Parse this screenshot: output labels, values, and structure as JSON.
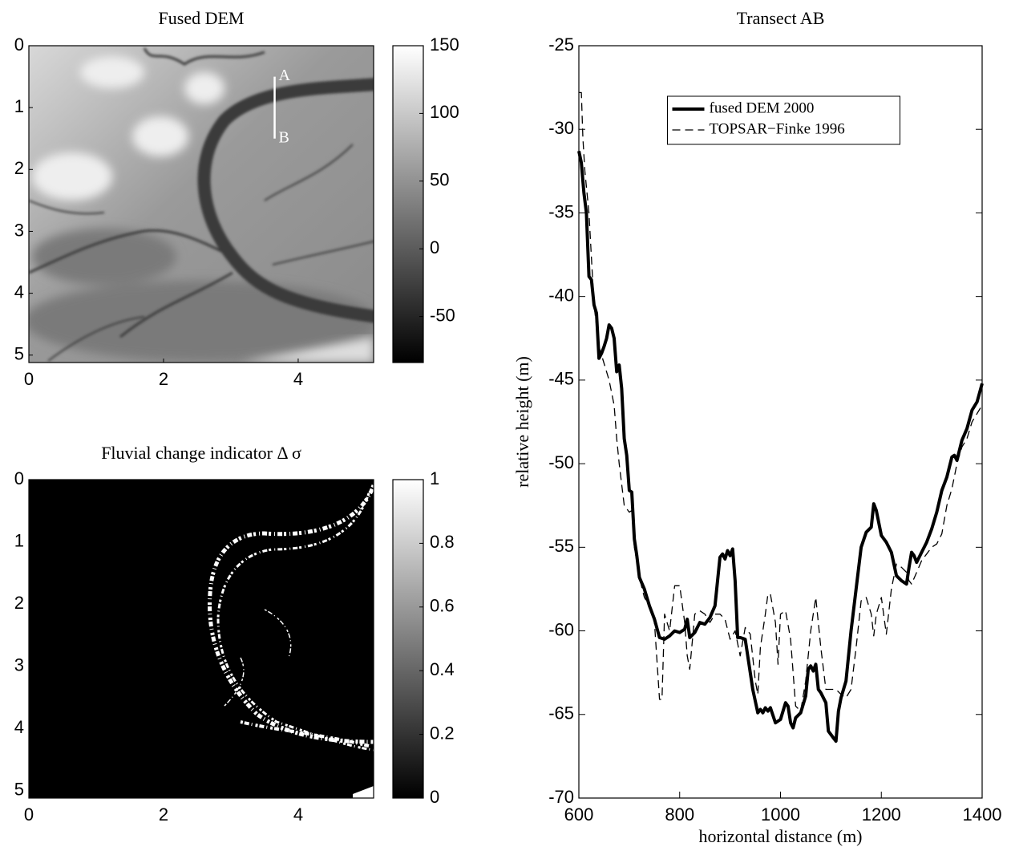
{
  "chart_data": [
    {
      "type": "image",
      "title": "Fused DEM",
      "xlim": [
        0,
        5.12
      ],
      "ylim": [
        0,
        5.12
      ],
      "y_reversed": true,
      "xticks": [
        0,
        2,
        4
      ],
      "yticks": [
        0,
        1,
        2,
        3,
        4,
        5
      ],
      "clim": [
        -84,
        150
      ],
      "cticks": [
        150,
        100,
        50,
        0,
        -50
      ],
      "transect": {
        "x": 3.65,
        "y": [
          0.5,
          1.5
        ],
        "labels": [
          "A",
          "B"
        ],
        "color": "#ffffff"
      }
    },
    {
      "type": "image",
      "title": "Fluvial change indicator Δ σ",
      "xlim": [
        0,
        5.12
      ],
      "ylim": [
        0,
        5.12
      ],
      "y_reversed": true,
      "xticks": [
        0,
        2,
        4
      ],
      "yticks": [
        0,
        1,
        2,
        3,
        4,
        5
      ],
      "clim": [
        0,
        1
      ],
      "cticks": [
        1,
        0.8,
        0.6,
        0.4,
        0.2,
        0
      ]
    },
    {
      "type": "line",
      "title": "Transect AB",
      "x_label": "horizontal distance (m)",
      "y_label": "relative height (m)",
      "xlim": [
        600,
        1400
      ],
      "ylim": [
        -70,
        -25
      ],
      "xticks": [
        600,
        800,
        1000,
        1200,
        1400
      ],
      "yticks": [
        -25,
        -30,
        -35,
        -40,
        -45,
        -50,
        -55,
        -60,
        -65,
        -70
      ],
      "legend": "upper center",
      "series": [
        {
          "name": "fused DEM 2000",
          "color": "#000000",
          "line_style": "solid",
          "line_width": 4,
          "x": [
            600,
            605,
            610,
            615,
            620,
            625,
            630,
            635,
            640,
            645,
            650,
            655,
            660,
            665,
            670,
            675,
            680,
            685,
            690,
            695,
            700,
            705,
            710,
            715,
            720,
            730,
            740,
            750,
            760,
            770,
            780,
            790,
            800,
            810,
            815,
            820,
            830,
            840,
            850,
            860,
            870,
            880,
            885,
            890,
            895,
            900,
            905,
            910,
            915,
            920,
            930,
            940,
            945,
            955,
            960,
            965,
            970,
            975,
            980,
            990,
            1000,
            1010,
            1015,
            1020,
            1025,
            1030,
            1040,
            1050,
            1055,
            1060,
            1065,
            1070,
            1075,
            1080,
            1090,
            1095,
            1105,
            1110,
            1115,
            1120,
            1130,
            1140,
            1150,
            1160,
            1170,
            1180,
            1185,
            1190,
            1200,
            1210,
            1220,
            1230,
            1240,
            1250,
            1255,
            1260,
            1265,
            1270,
            1280,
            1290,
            1300,
            1310,
            1320,
            1330,
            1340,
            1345,
            1350,
            1360,
            1370,
            1380,
            1390,
            1400
          ],
          "values": [
            -31.3,
            -32,
            -33.8,
            -35,
            -38.8,
            -39,
            -40.5,
            -41,
            -43.7,
            -43.4,
            -43,
            -42.5,
            -41.7,
            -41.9,
            -42.5,
            -44.5,
            -44.1,
            -45.5,
            -48.5,
            -49.5,
            -51.6,
            -51.7,
            -54.5,
            -55.5,
            -56.8,
            -57.5,
            -58.5,
            -59.3,
            -60.4,
            -60.5,
            -60.3,
            -60,
            -60.1,
            -59.9,
            -59.3,
            -60.4,
            -60.1,
            -59.5,
            -59.6,
            -59.2,
            -58.5,
            -55.6,
            -55.4,
            -55.7,
            -55.2,
            -55.5,
            -55.1,
            -57,
            -60.4,
            -60.4,
            -60.5,
            -62.5,
            -63.5,
            -64.9,
            -64.7,
            -64.9,
            -64.6,
            -64.8,
            -64.6,
            -65.5,
            -65.3,
            -64.3,
            -64.5,
            -65.5,
            -65.8,
            -65.2,
            -64.9,
            -63.9,
            -62.3,
            -62.1,
            -62.4,
            -62,
            -63.5,
            -63.7,
            -64.3,
            -66,
            -66.4,
            -66.6,
            -64.8,
            -64,
            -63,
            -60,
            -57.5,
            -55,
            -54.1,
            -53.8,
            -52.4,
            -52.8,
            -54.3,
            -54.7,
            -55.3,
            -56.7,
            -57,
            -57.2,
            -56.2,
            -55.3,
            -55.5,
            -55.9,
            -55.3,
            -54.7,
            -53.9,
            -52.9,
            -51.6,
            -50.8,
            -49.6,
            -49.5,
            -49.8,
            -48.6,
            -47.9,
            -46.8,
            -46.3,
            -45.2
          ]
        },
        {
          "name": "TOPSAR−Finke 1996",
          "color": "#000000",
          "line_style": "dashed",
          "line_width": 1.3,
          "x": [
            600,
            605,
            608,
            612,
            620,
            630,
            640,
            650,
            660,
            670,
            675,
            680,
            690,
            700,
            705,
            710,
            720,
            730,
            740,
            750,
            760,
            765,
            770,
            780,
            790,
            800,
            810,
            815,
            820,
            830,
            840,
            850,
            860,
            870,
            880,
            890,
            900,
            910,
            920,
            930,
            940,
            950,
            955,
            960,
            970,
            975,
            980,
            990,
            995,
            1000,
            1010,
            1020,
            1030,
            1040,
            1050,
            1060,
            1070,
            1080,
            1090,
            1100,
            1110,
            1120,
            1130,
            1140,
            1150,
            1160,
            1170,
            1180,
            1185,
            1190,
            1200,
            1210,
            1220,
            1230,
            1240,
            1250,
            1255,
            1260,
            1270,
            1280,
            1290,
            1300,
            1310,
            1320,
            1330,
            1340,
            1350,
            1360,
            1370,
            1380,
            1390,
            1400
          ],
          "values": [
            -27.8,
            -27.8,
            -30.5,
            -32.5,
            -35,
            -40.5,
            -43,
            -44,
            -45,
            -46.5,
            -48.5,
            -50,
            -52.5,
            -52.9,
            -52.8,
            -55,
            -56.8,
            -58,
            -58.5,
            -59.5,
            -64.1,
            -64.1,
            -59,
            -60,
            -57.3,
            -57.3,
            -59.5,
            -61.5,
            -62.3,
            -59,
            -58.8,
            -59,
            -59.5,
            -59,
            -59,
            -59.3,
            -60.5,
            -60,
            -61.5,
            -59.8,
            -60.2,
            -63,
            -63.8,
            -61,
            -59,
            -57.8,
            -57.8,
            -59.5,
            -62,
            -59,
            -58.8,
            -60.5,
            -64.5,
            -64.8,
            -63,
            -60,
            -58,
            -61,
            -63.5,
            -63.5,
            -63.5,
            -63.8,
            -64,
            -63.5,
            -61,
            -58.2,
            -58,
            -59,
            -60.3,
            -59,
            -58,
            -60.2,
            -57.5,
            -56,
            -56.2,
            -56.5,
            -57,
            -57.2,
            -56.5,
            -55.8,
            -55.4,
            -55,
            -54.8,
            -54.2,
            -52.5,
            -51.5,
            -50,
            -49,
            -48.5,
            -47.5,
            -47,
            -46.5
          ]
        }
      ]
    }
  ]
}
